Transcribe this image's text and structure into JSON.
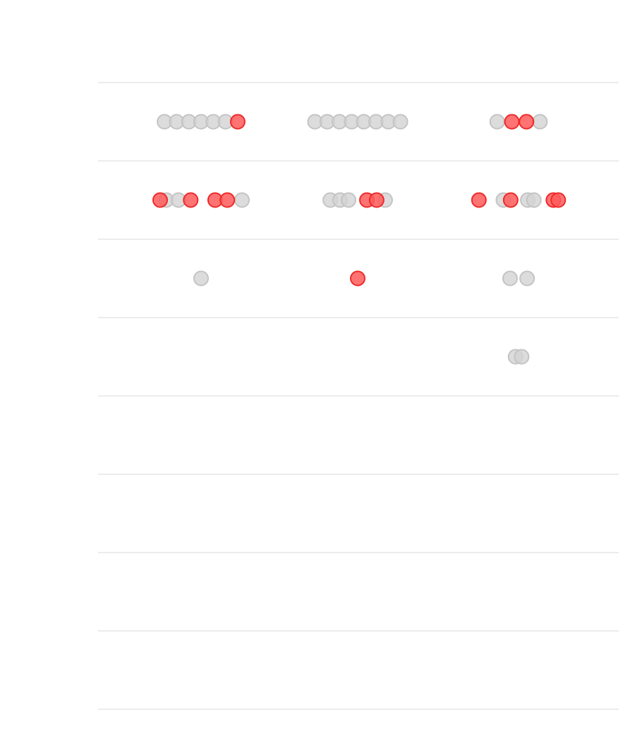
{
  "chart_data": {
    "type": "scatter",
    "title": "",
    "xlabel": "",
    "ylabel": "",
    "grid": true,
    "legend": "none",
    "rows": 8,
    "columns": 3,
    "colors": {
      "neutral_fill": "#d3d3d3",
      "neutral_stroke": "#c4c4c4",
      "highlight_fill": "#ff5a5a",
      "highlight_stroke": "#ee2a2a",
      "gridline": "#e6e6e6",
      "background": "#ffffff"
    },
    "series": [
      {
        "category": "neutral",
        "points": [
          {
            "row": 0,
            "col": 0,
            "x": 0.0
          },
          {
            "row": 0,
            "col": 0,
            "x": 1.0
          },
          {
            "row": 0,
            "col": 0,
            "x": 2.0
          },
          {
            "row": 0,
            "col": 0,
            "x": 3.0
          },
          {
            "row": 0,
            "col": 0,
            "x": 4.0
          },
          {
            "row": 0,
            "col": 0,
            "x": 5.0
          },
          {
            "row": 0,
            "col": 1,
            "x": 0.0
          },
          {
            "row": 0,
            "col": 1,
            "x": 1.0
          },
          {
            "row": 0,
            "col": 1,
            "x": 2.0
          },
          {
            "row": 0,
            "col": 1,
            "x": 3.0
          },
          {
            "row": 0,
            "col": 1,
            "x": 4.0
          },
          {
            "row": 0,
            "col": 1,
            "x": 5.0
          },
          {
            "row": 0,
            "col": 1,
            "x": 6.0
          },
          {
            "row": 0,
            "col": 1,
            "x": 7.0
          },
          {
            "row": 0,
            "col": 2,
            "x": 0.0
          },
          {
            "row": 0,
            "col": 2,
            "x": 3.5
          },
          {
            "row": 1,
            "col": 0,
            "x": 0.5
          },
          {
            "row": 1,
            "col": 0,
            "x": 1.5
          },
          {
            "row": 1,
            "col": 0,
            "x": 6.7
          },
          {
            "row": 1,
            "col": 1,
            "x": 0.0
          },
          {
            "row": 1,
            "col": 1,
            "x": 0.8
          },
          {
            "row": 1,
            "col": 1,
            "x": 1.5
          },
          {
            "row": 1,
            "col": 1,
            "x": 4.5
          },
          {
            "row": 1,
            "col": 2,
            "x": 2.0
          },
          {
            "row": 1,
            "col": 2,
            "x": 4.0
          },
          {
            "row": 1,
            "col": 2,
            "x": 4.5
          },
          {
            "row": 2,
            "col": 0,
            "x": 0.0
          },
          {
            "row": 2,
            "col": 2,
            "x": 0.0
          },
          {
            "row": 2,
            "col": 2,
            "x": 1.4
          },
          {
            "row": 3,
            "col": 2,
            "x": 0.0
          },
          {
            "row": 3,
            "col": 2,
            "x": 0.5
          }
        ]
      },
      {
        "category": "highlight",
        "points": [
          {
            "row": 0,
            "col": 0,
            "x": 6.0
          },
          {
            "row": 0,
            "col": 2,
            "x": 1.2
          },
          {
            "row": 0,
            "col": 2,
            "x": 2.4
          },
          {
            "row": 1,
            "col": 0,
            "x": 0.0
          },
          {
            "row": 1,
            "col": 0,
            "x": 2.5
          },
          {
            "row": 1,
            "col": 0,
            "x": 4.5
          },
          {
            "row": 1,
            "col": 0,
            "x": 5.5
          },
          {
            "row": 1,
            "col": 1,
            "x": 3.0
          },
          {
            "row": 1,
            "col": 1,
            "x": 3.8
          },
          {
            "row": 1,
            "col": 2,
            "x": 0.0
          },
          {
            "row": 1,
            "col": 2,
            "x": 2.6
          },
          {
            "row": 1,
            "col": 2,
            "x": 6.1
          },
          {
            "row": 1,
            "col": 2,
            "x": 6.5
          },
          {
            "row": 2,
            "col": 1,
            "x": 0.0
          }
        ]
      }
    ]
  }
}
